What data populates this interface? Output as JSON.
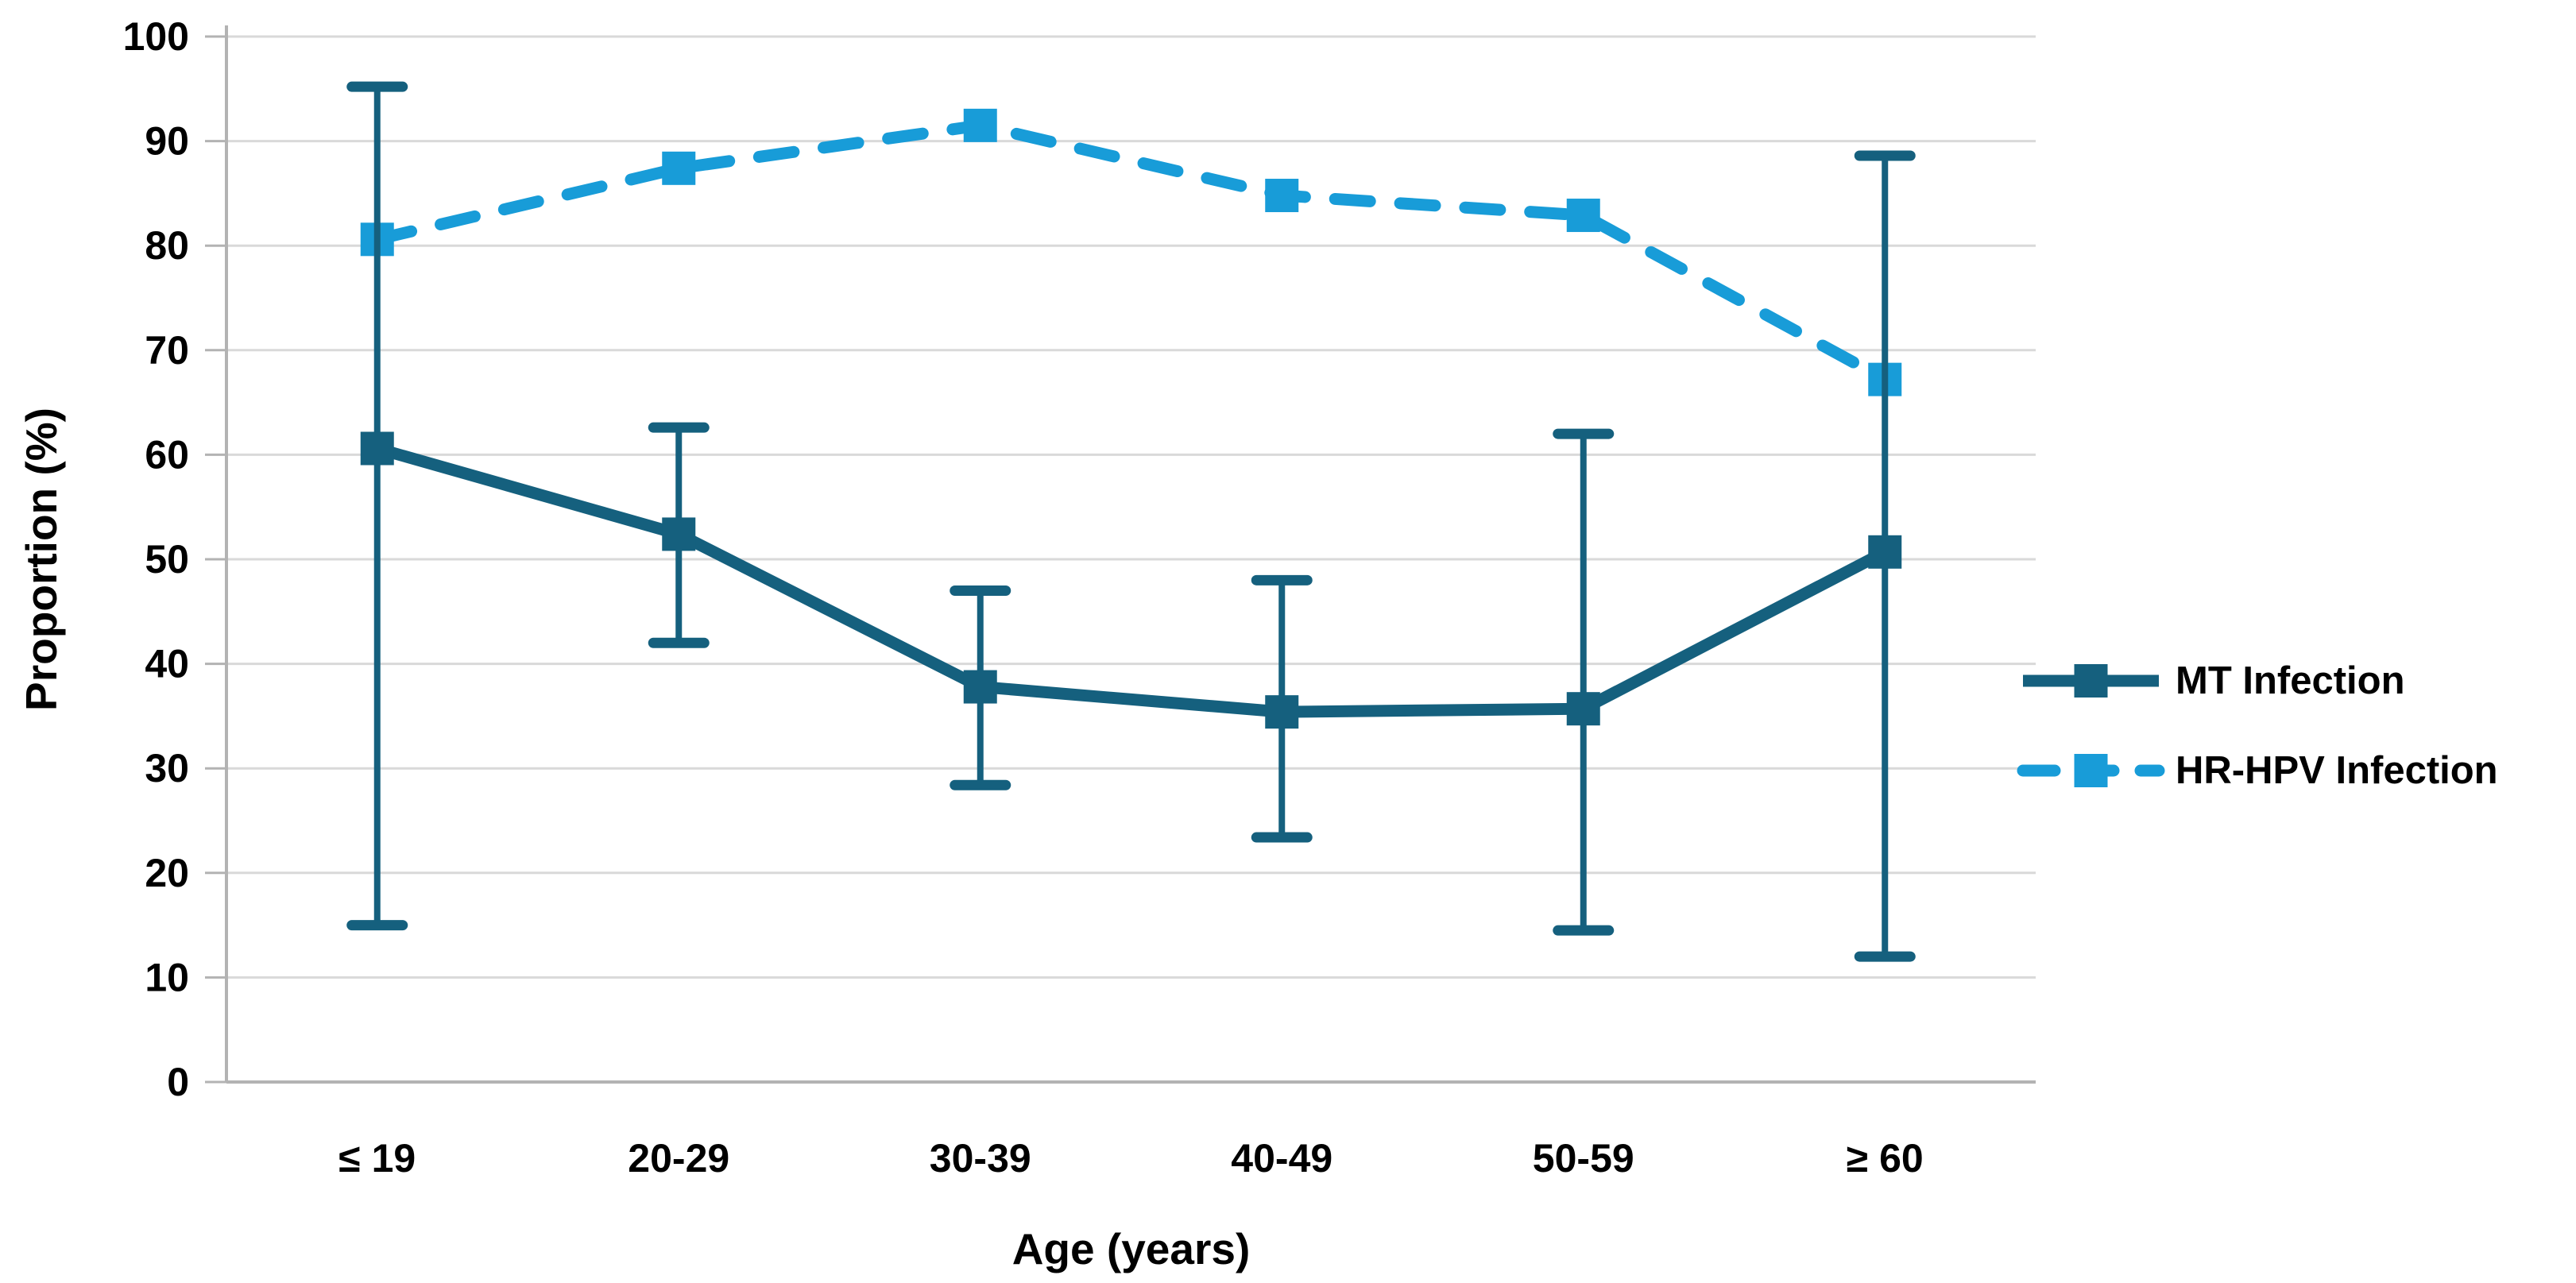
{
  "chart_data": {
    "type": "line",
    "title": "",
    "xlabel": "Age (years)",
    "ylabel": "Proportion (%)",
    "categories": [
      "≤ 19",
      "20-29",
      "30-39",
      "40-49",
      "50-59",
      "≥ 60"
    ],
    "y_ticks": [
      0,
      10,
      20,
      30,
      40,
      50,
      60,
      70,
      80,
      90,
      100
    ],
    "ylim": [
      0,
      100
    ],
    "grid": "horizontal",
    "grid_color": "#d9d9d9",
    "axis_color": "#b3b3b3",
    "text_color": "#000000",
    "legend_position": "right",
    "series": [
      {
        "name": "MT Infection",
        "color": "#15607E",
        "line_style": "solid",
        "marker": "square",
        "values": [
          60.6,
          52.4,
          37.8,
          35.4,
          35.7,
          50.7
        ],
        "error_low": [
          15.0,
          42.0,
          28.4,
          23.4,
          14.5,
          12.0
        ],
        "error_high": [
          95.2,
          62.6,
          47.0,
          48.0,
          62.0,
          88.6
        ]
      },
      {
        "name": "HR-HPV Infection",
        "color": "#189CD8",
        "line_style": "dashed",
        "marker": "square",
        "values": [
          80.6,
          87.4,
          91.5,
          84.8,
          82.9,
          67.2
        ],
        "error_low": null,
        "error_high": null
      }
    ]
  }
}
